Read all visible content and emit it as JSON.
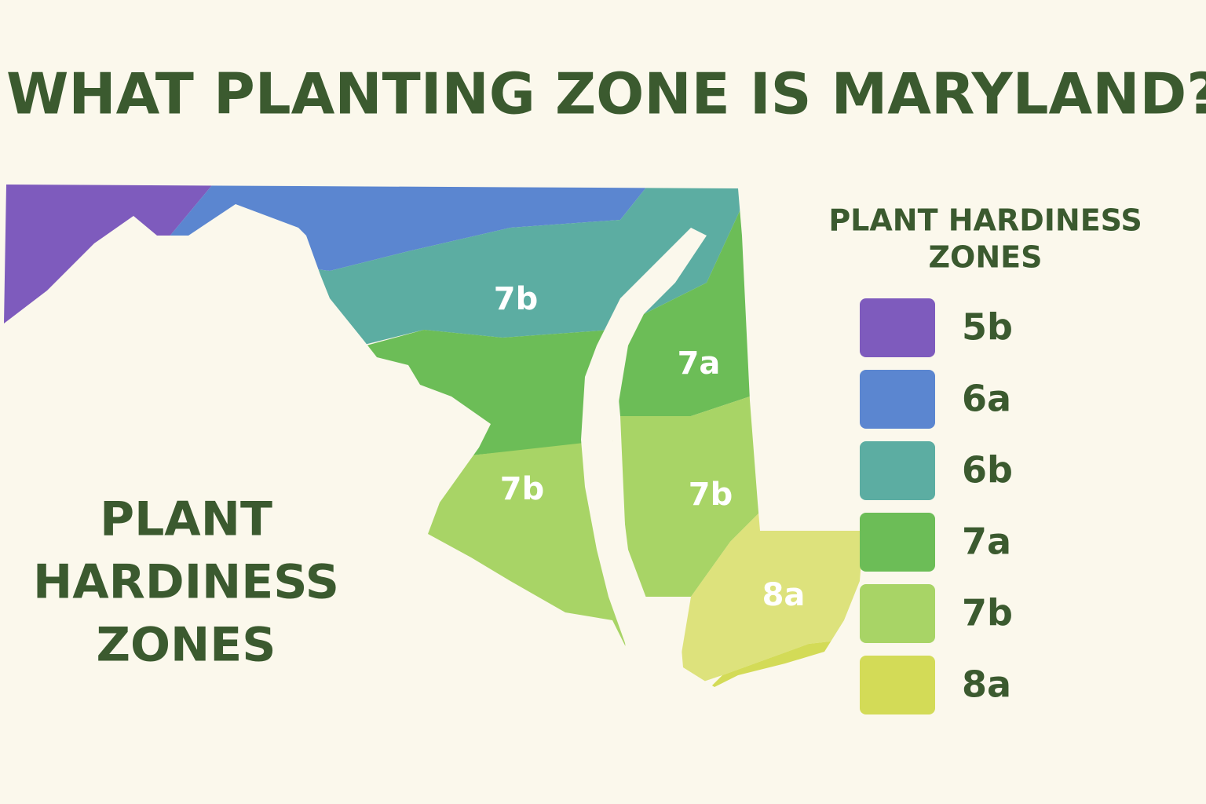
{
  "title": "WHAT PLANTING ZONE IS MARYLAND?",
  "side_label": [
    "PLANT",
    "HARDINESS",
    "ZONES"
  ],
  "map_labels": [
    "7b",
    "7a",
    "7b",
    "7b",
    "8a"
  ],
  "legend": {
    "title": [
      "PLANT HARDINESS",
      "ZONES"
    ],
    "items": [
      {
        "label": "5b",
        "color": "#7e5bbd"
      },
      {
        "label": "6a",
        "color": "#5b86d0"
      },
      {
        "label": "6b",
        "color": "#5cada2"
      },
      {
        "label": "7a",
        "color": "#6cbd57"
      },
      {
        "label": "7b",
        "color": "#a8d466"
      },
      {
        "label": "8a",
        "color": "#d3db57"
      }
    ]
  }
}
